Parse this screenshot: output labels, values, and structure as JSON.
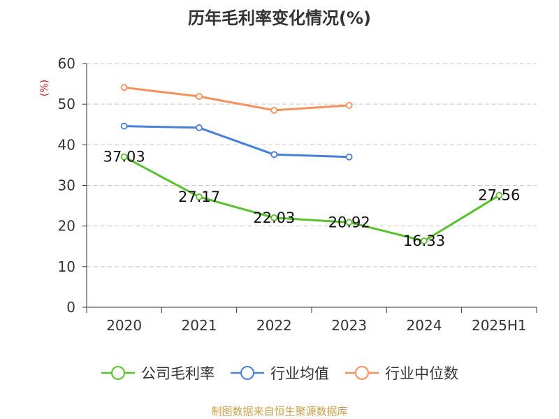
{
  "chart_data": {
    "type": "line",
    "title": "历年毛利率变化情况(%)",
    "ylabel": "(%)",
    "xlabel": "",
    "categories": [
      "2020",
      "2021",
      "2022",
      "2023",
      "2024",
      "2025H1"
    ],
    "ylim": [
      0,
      60
    ],
    "yticks": [
      0,
      10,
      20,
      30,
      40,
      50,
      60
    ],
    "grid": true,
    "legend_position": "bottom",
    "series": [
      {
        "name": "公司毛利率",
        "color": "#5ac12e",
        "values": [
          37.03,
          27.17,
          22.03,
          20.92,
          16.33,
          27.56
        ],
        "labels": [
          "37.03",
          "27.17",
          "22.03",
          "20.92",
          "16.33",
          "27.56"
        ]
      },
      {
        "name": "行业均值",
        "color": "#4a7fd8",
        "values": [
          44.6,
          44.2,
          37.6,
          37.0,
          null,
          null
        ]
      },
      {
        "name": "行业中位数",
        "color": "#f7905a",
        "values": [
          54.1,
          51.9,
          48.5,
          49.7,
          null,
          null
        ]
      }
    ]
  },
  "footer": "制图数据来自恒生聚源数据库"
}
